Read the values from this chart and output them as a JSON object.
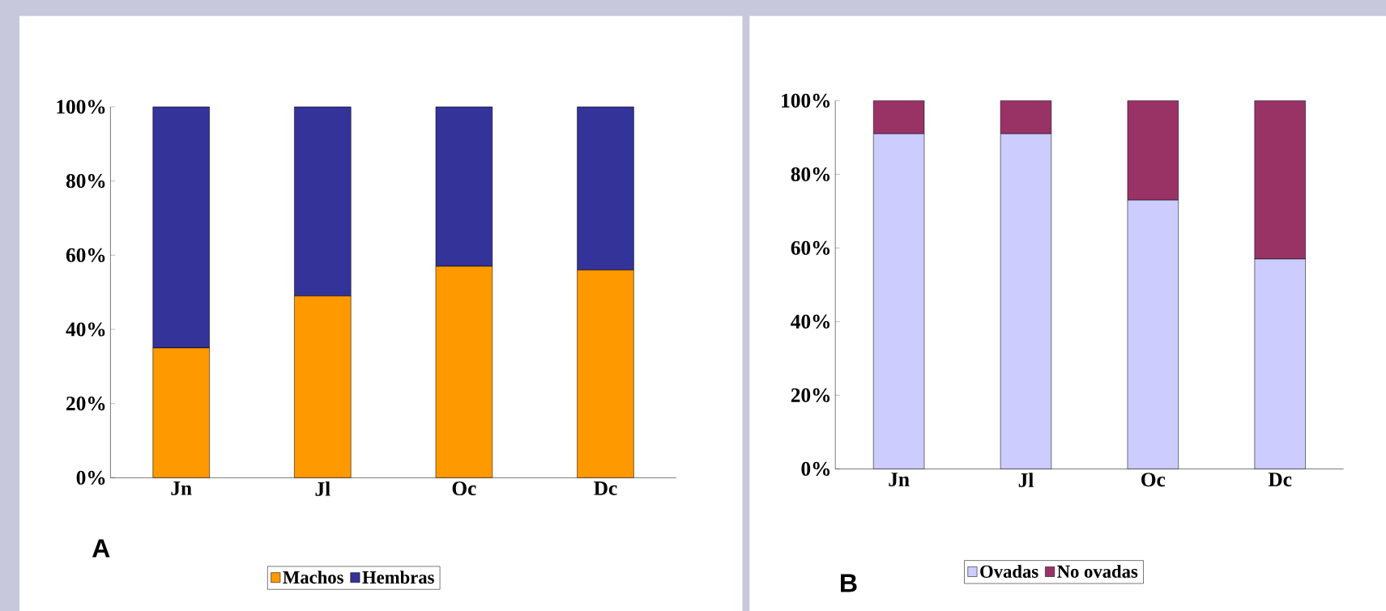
{
  "chart_data": [
    {
      "type": "bar",
      "stacked": true,
      "categories": [
        "Jn",
        "Jl",
        "Oc",
        "Dc"
      ],
      "series": [
        {
          "name": "Machos",
          "color": "#ff9900",
          "values": [
            35,
            49,
            57,
            56
          ]
        },
        {
          "name": "Hembras",
          "color": "#333399",
          "values": [
            65,
            51,
            43,
            44
          ]
        }
      ],
      "ylim": [
        0,
        100
      ],
      "yticks": [
        {
          "value": 0,
          "label": "0%"
        },
        {
          "value": 20,
          "label": "20%"
        },
        {
          "value": 40,
          "label": "40%"
        },
        {
          "value": 60,
          "label": "60%"
        },
        {
          "value": 80,
          "label": "80%"
        },
        {
          "value": 100,
          "label": "100%"
        }
      ],
      "legend": "bottom",
      "annotations": [
        "A"
      ]
    },
    {
      "type": "bar",
      "stacked": true,
      "categories": [
        "Jn",
        "Jl",
        "Oc",
        "Dc"
      ],
      "series": [
        {
          "name": "Ovadas",
          "color": "#ccccff",
          "values": [
            91,
            91,
            73,
            57
          ]
        },
        {
          "name": "No ovadas",
          "color": "#993366",
          "values": [
            9,
            9,
            27,
            43
          ]
        }
      ],
      "ylim": [
        0,
        100
      ],
      "yticks": [
        {
          "value": 0,
          "label": "0%"
        },
        {
          "value": 20,
          "label": "20%"
        },
        {
          "value": 40,
          "label": "40%"
        },
        {
          "value": 60,
          "label": "60%"
        },
        {
          "value": 80,
          "label": "80%"
        },
        {
          "value": 100,
          "label": "100%"
        }
      ],
      "legend": "bottom",
      "annotations": [
        "B"
      ]
    }
  ]
}
